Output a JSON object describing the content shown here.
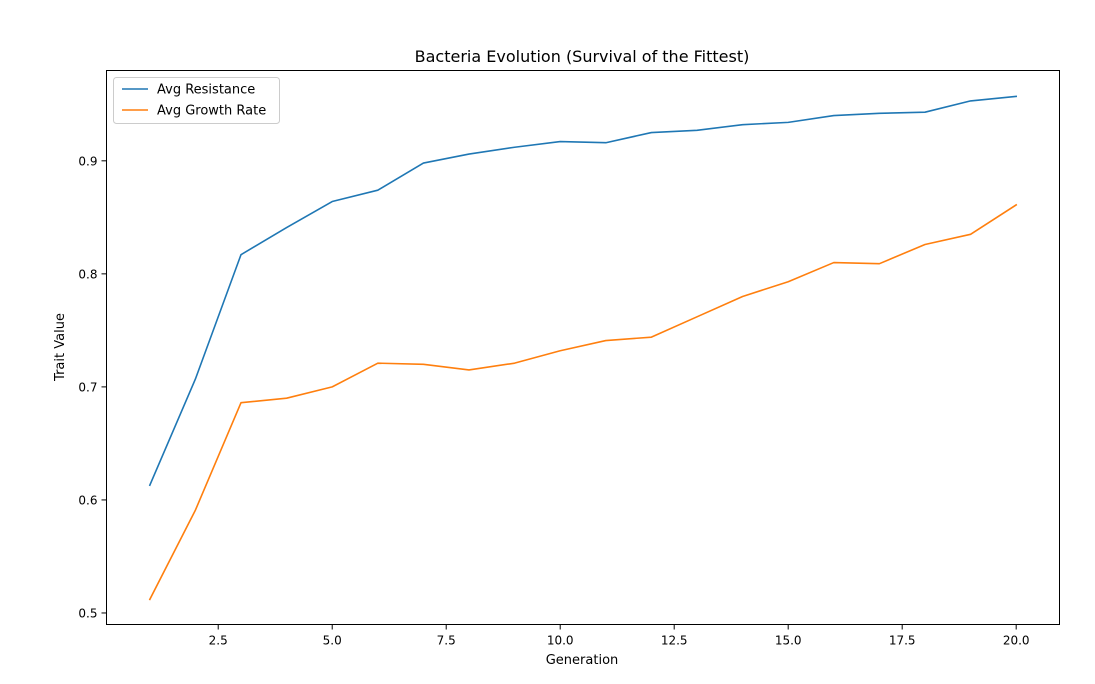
{
  "chart_data": {
    "type": "line",
    "title": "Bacteria Evolution (Survival of the Fittest)",
    "xlabel": "Generation",
    "ylabel": "Trait Value",
    "xlim": [
      0.05,
      20.95
    ],
    "ylim": [
      0.4898,
      0.9799
    ],
    "x": [
      1,
      2,
      3,
      4,
      5,
      6,
      7,
      8,
      9,
      10,
      11,
      12,
      13,
      14,
      15,
      16,
      17,
      18,
      19,
      20
    ],
    "xticks": [
      2.5,
      5.0,
      7.5,
      10.0,
      12.5,
      15.0,
      17.5,
      20.0
    ],
    "xtick_labels": [
      "2.5",
      "5.0",
      "7.5",
      "10.0",
      "12.5",
      "15.0",
      "17.5",
      "20.0"
    ],
    "yticks": [
      0.5,
      0.6,
      0.7,
      0.8,
      0.9
    ],
    "ytick_labels": [
      "0.5",
      "0.6",
      "0.7",
      "0.8",
      "0.9"
    ],
    "grid": false,
    "legend_position": "top-left",
    "series": [
      {
        "name": "Avg Resistance",
        "color": "#1f77b4",
        "values": [
          0.613,
          0.707,
          0.817,
          0.841,
          0.864,
          0.874,
          0.898,
          0.906,
          0.912,
          0.917,
          0.916,
          0.925,
          0.927,
          0.932,
          0.934,
          0.94,
          0.942,
          0.943,
          0.953,
          0.957
        ]
      },
      {
        "name": "Avg Growth Rate",
        "color": "#ff7f0e",
        "values": [
          0.512,
          0.591,
          0.686,
          0.69,
          0.7,
          0.721,
          0.72,
          0.715,
          0.721,
          0.732,
          0.741,
          0.744,
          0.762,
          0.78,
          0.793,
          0.81,
          0.809,
          0.826,
          0.835,
          0.861
        ]
      }
    ]
  }
}
